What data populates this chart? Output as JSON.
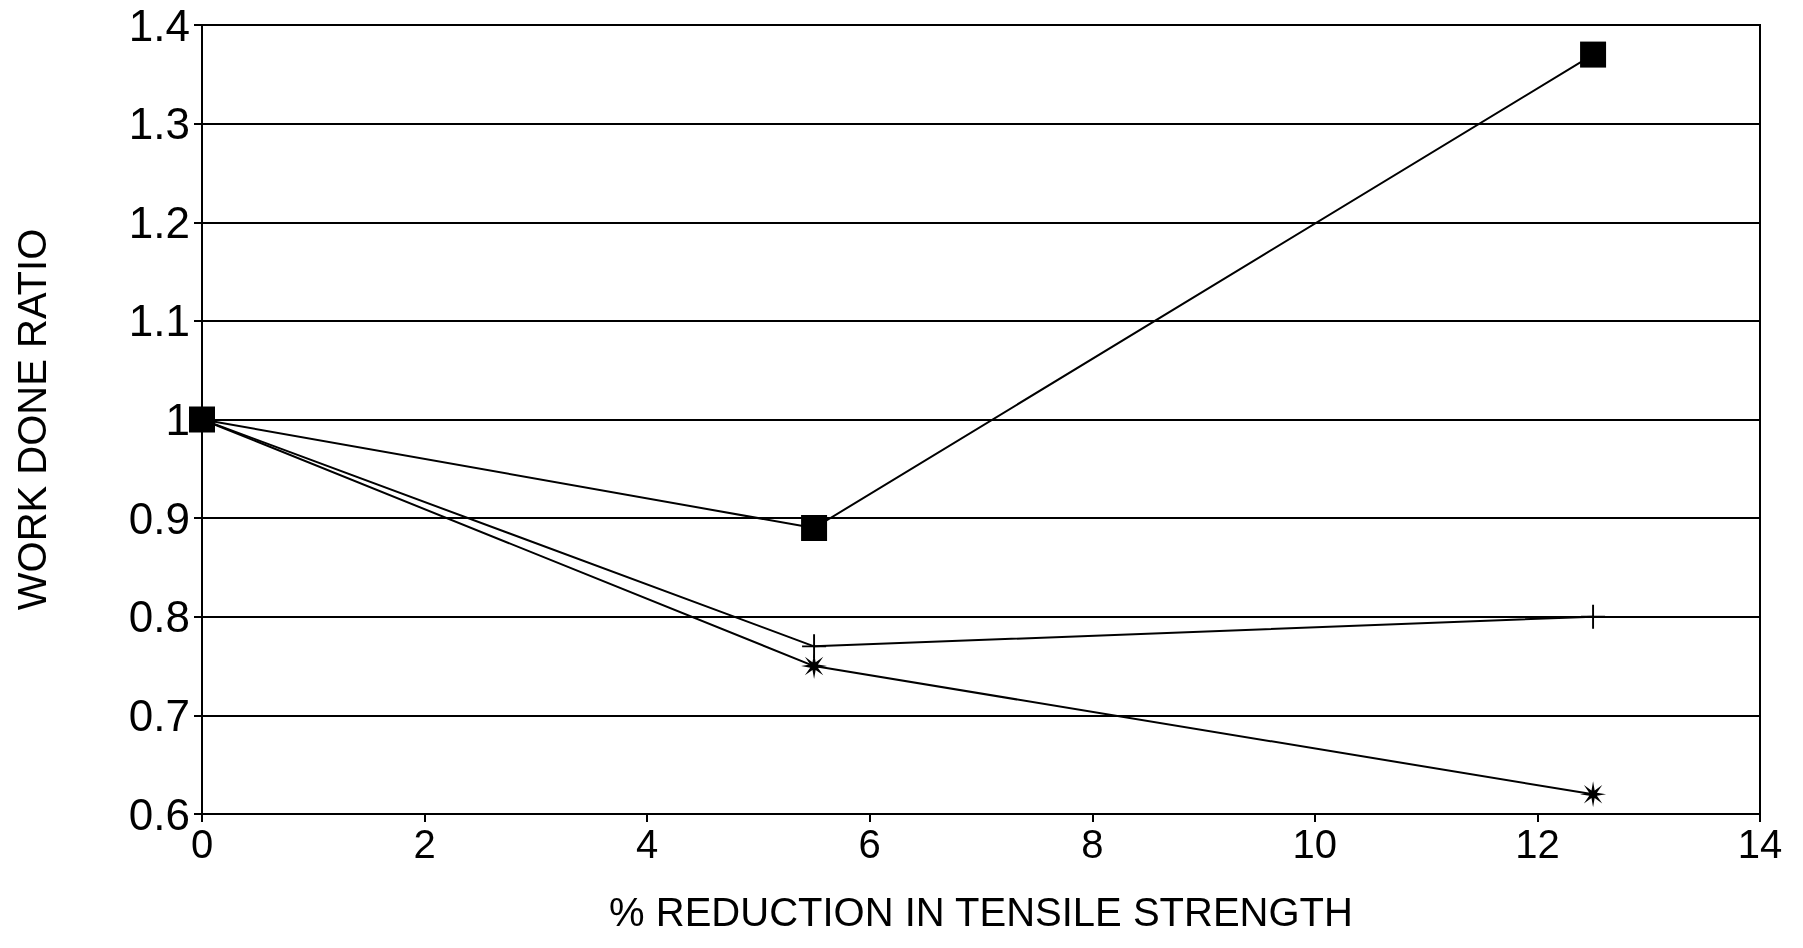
{
  "chart_data": {
    "type": "line",
    "xlabel": "% REDUCTION IN TENSILE STRENGTH",
    "ylabel": "WORK DONE RATIO",
    "xlim": [
      0,
      14
    ],
    "xticks": [
      0,
      2,
      4,
      6,
      8,
      10,
      12,
      14
    ],
    "ylim": [
      0.6,
      1.4
    ],
    "yticks": [
      0.6,
      0.7,
      0.8,
      0.9,
      1,
      1.1,
      1.2,
      1.3,
      1.4
    ],
    "grid": "y",
    "line_style": "solid",
    "series": [
      {
        "color": "#000000",
        "marker": "square",
        "x": [
          0,
          5.5,
          12.5
        ],
        "values": [
          1,
          0.89,
          1.37
        ]
      },
      {
        "color": "#000000",
        "marker": "cross",
        "x": [
          0,
          5.5,
          12.5
        ],
        "values": [
          1,
          0.77,
          0.8
        ]
      },
      {
        "color": "#000000",
        "marker": "star",
        "x": [
          0,
          5.5,
          12.5
        ],
        "values": [
          1,
          0.75,
          0.62
        ]
      }
    ]
  }
}
